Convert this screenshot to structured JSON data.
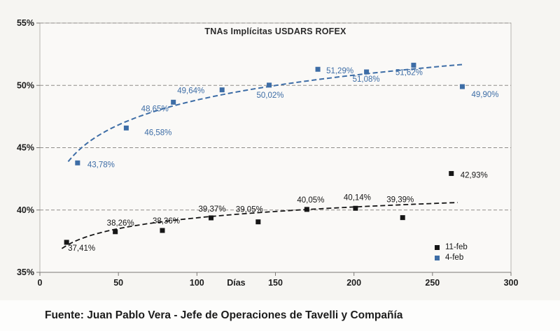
{
  "source_text": "Fuente: Juan Pablo Vera - Jefe de Operaciones de Tavelli y Compañía",
  "chart_data": {
    "type": "scatter",
    "title": "TNAs Implícitas USDARS ROFEX",
    "xlabel": "Días",
    "xlabel_x": 125,
    "ylabel": "",
    "xlim": [
      0,
      300
    ],
    "ylim": [
      35,
      55
    ],
    "x_ticks": [
      0,
      50,
      100,
      150,
      200,
      250,
      300
    ],
    "y_ticks": [
      {
        "value": 55,
        "label": "55%"
      },
      {
        "value": 50,
        "label": "50%"
      },
      {
        "value": 45,
        "label": "45%"
      },
      {
        "value": 40,
        "label": "40%"
      },
      {
        "value": 35,
        "label": "35%"
      }
    ],
    "grid": "horizontal-dashed",
    "legend_position": "bottom-right",
    "colors": {
      "plot_bg": "#faf9f7",
      "border": "#b8b5b0",
      "grid": "#8f8c88",
      "axis": "#7a7774",
      "text": "#1d1d1d"
    },
    "series": [
      {
        "name": "11-feb",
        "color": "#161616",
        "marker": "square",
        "trendline": {
          "type": "log",
          "a": 33.6,
          "b": 1.254,
          "x_start": 14,
          "x_end": 268,
          "width": 1.8
        },
        "points": [
          {
            "x": 17,
            "y": 37.41,
            "label": "37,41%",
            "dx": 2,
            "dy": 12
          },
          {
            "x": 48,
            "y": 38.26,
            "label": "38,26%",
            "dx": -12,
            "dy": -9
          },
          {
            "x": 78,
            "y": 38.36,
            "label": "38,36%",
            "dx": -14,
            "dy": -10
          },
          {
            "x": 109,
            "y": 39.37,
            "label": "39,37%",
            "dx": -18,
            "dy": -9
          },
          {
            "x": 139,
            "y": 39.05,
            "label": "39,05%",
            "dx": -32,
            "dy": -14
          },
          {
            "x": 170,
            "y": 40.05,
            "label": "40,05%",
            "dx": -14,
            "dy": -10
          },
          {
            "x": 201,
            "y": 40.14,
            "label": "40,14%",
            "dx": -17,
            "dy": -12
          },
          {
            "x": 231,
            "y": 39.39,
            "label": "39,39%",
            "dx": -23,
            "dy": -22
          },
          {
            "x": 262,
            "y": 42.93,
            "label": "42,93%",
            "dx": 13,
            "dy": 6
          }
        ]
      },
      {
        "name": "4-feb",
        "color": "#3d6da6",
        "marker": "square",
        "trendline": {
          "type": "log",
          "a": 35.56,
          "b": 2.88,
          "x_start": 18,
          "x_end": 272,
          "width": 2
        },
        "points": [
          {
            "x": 24,
            "y": 43.78,
            "label": "43,78%",
            "dx": 14,
            "dy": 6
          },
          {
            "x": 55,
            "y": 46.58,
            "label": "46,58%",
            "dx": 26,
            "dy": 10
          },
          {
            "x": 85,
            "y": 48.65,
            "label": "48,65%",
            "dx": -46,
            "dy": 13
          },
          {
            "x": 116,
            "y": 49.64,
            "label": "49,64%",
            "dx": -64,
            "dy": 5
          },
          {
            "x": 146,
            "y": 50.02,
            "label": "50,02%",
            "dx": -18,
            "dy": 18
          },
          {
            "x": 177,
            "y": 51.29,
            "label": "51,29%",
            "dx": 12,
            "dy": 6
          },
          {
            "x": 208,
            "y": 51.08,
            "label": "51,08%",
            "dx": -20,
            "dy": 14
          },
          {
            "x": 238,
            "y": 51.62,
            "label": "51,62%",
            "dx": -26,
            "dy": 14
          },
          {
            "x": 269,
            "y": 49.9,
            "label": "49,90%",
            "dx": 13,
            "dy": 15
          }
        ]
      }
    ]
  }
}
